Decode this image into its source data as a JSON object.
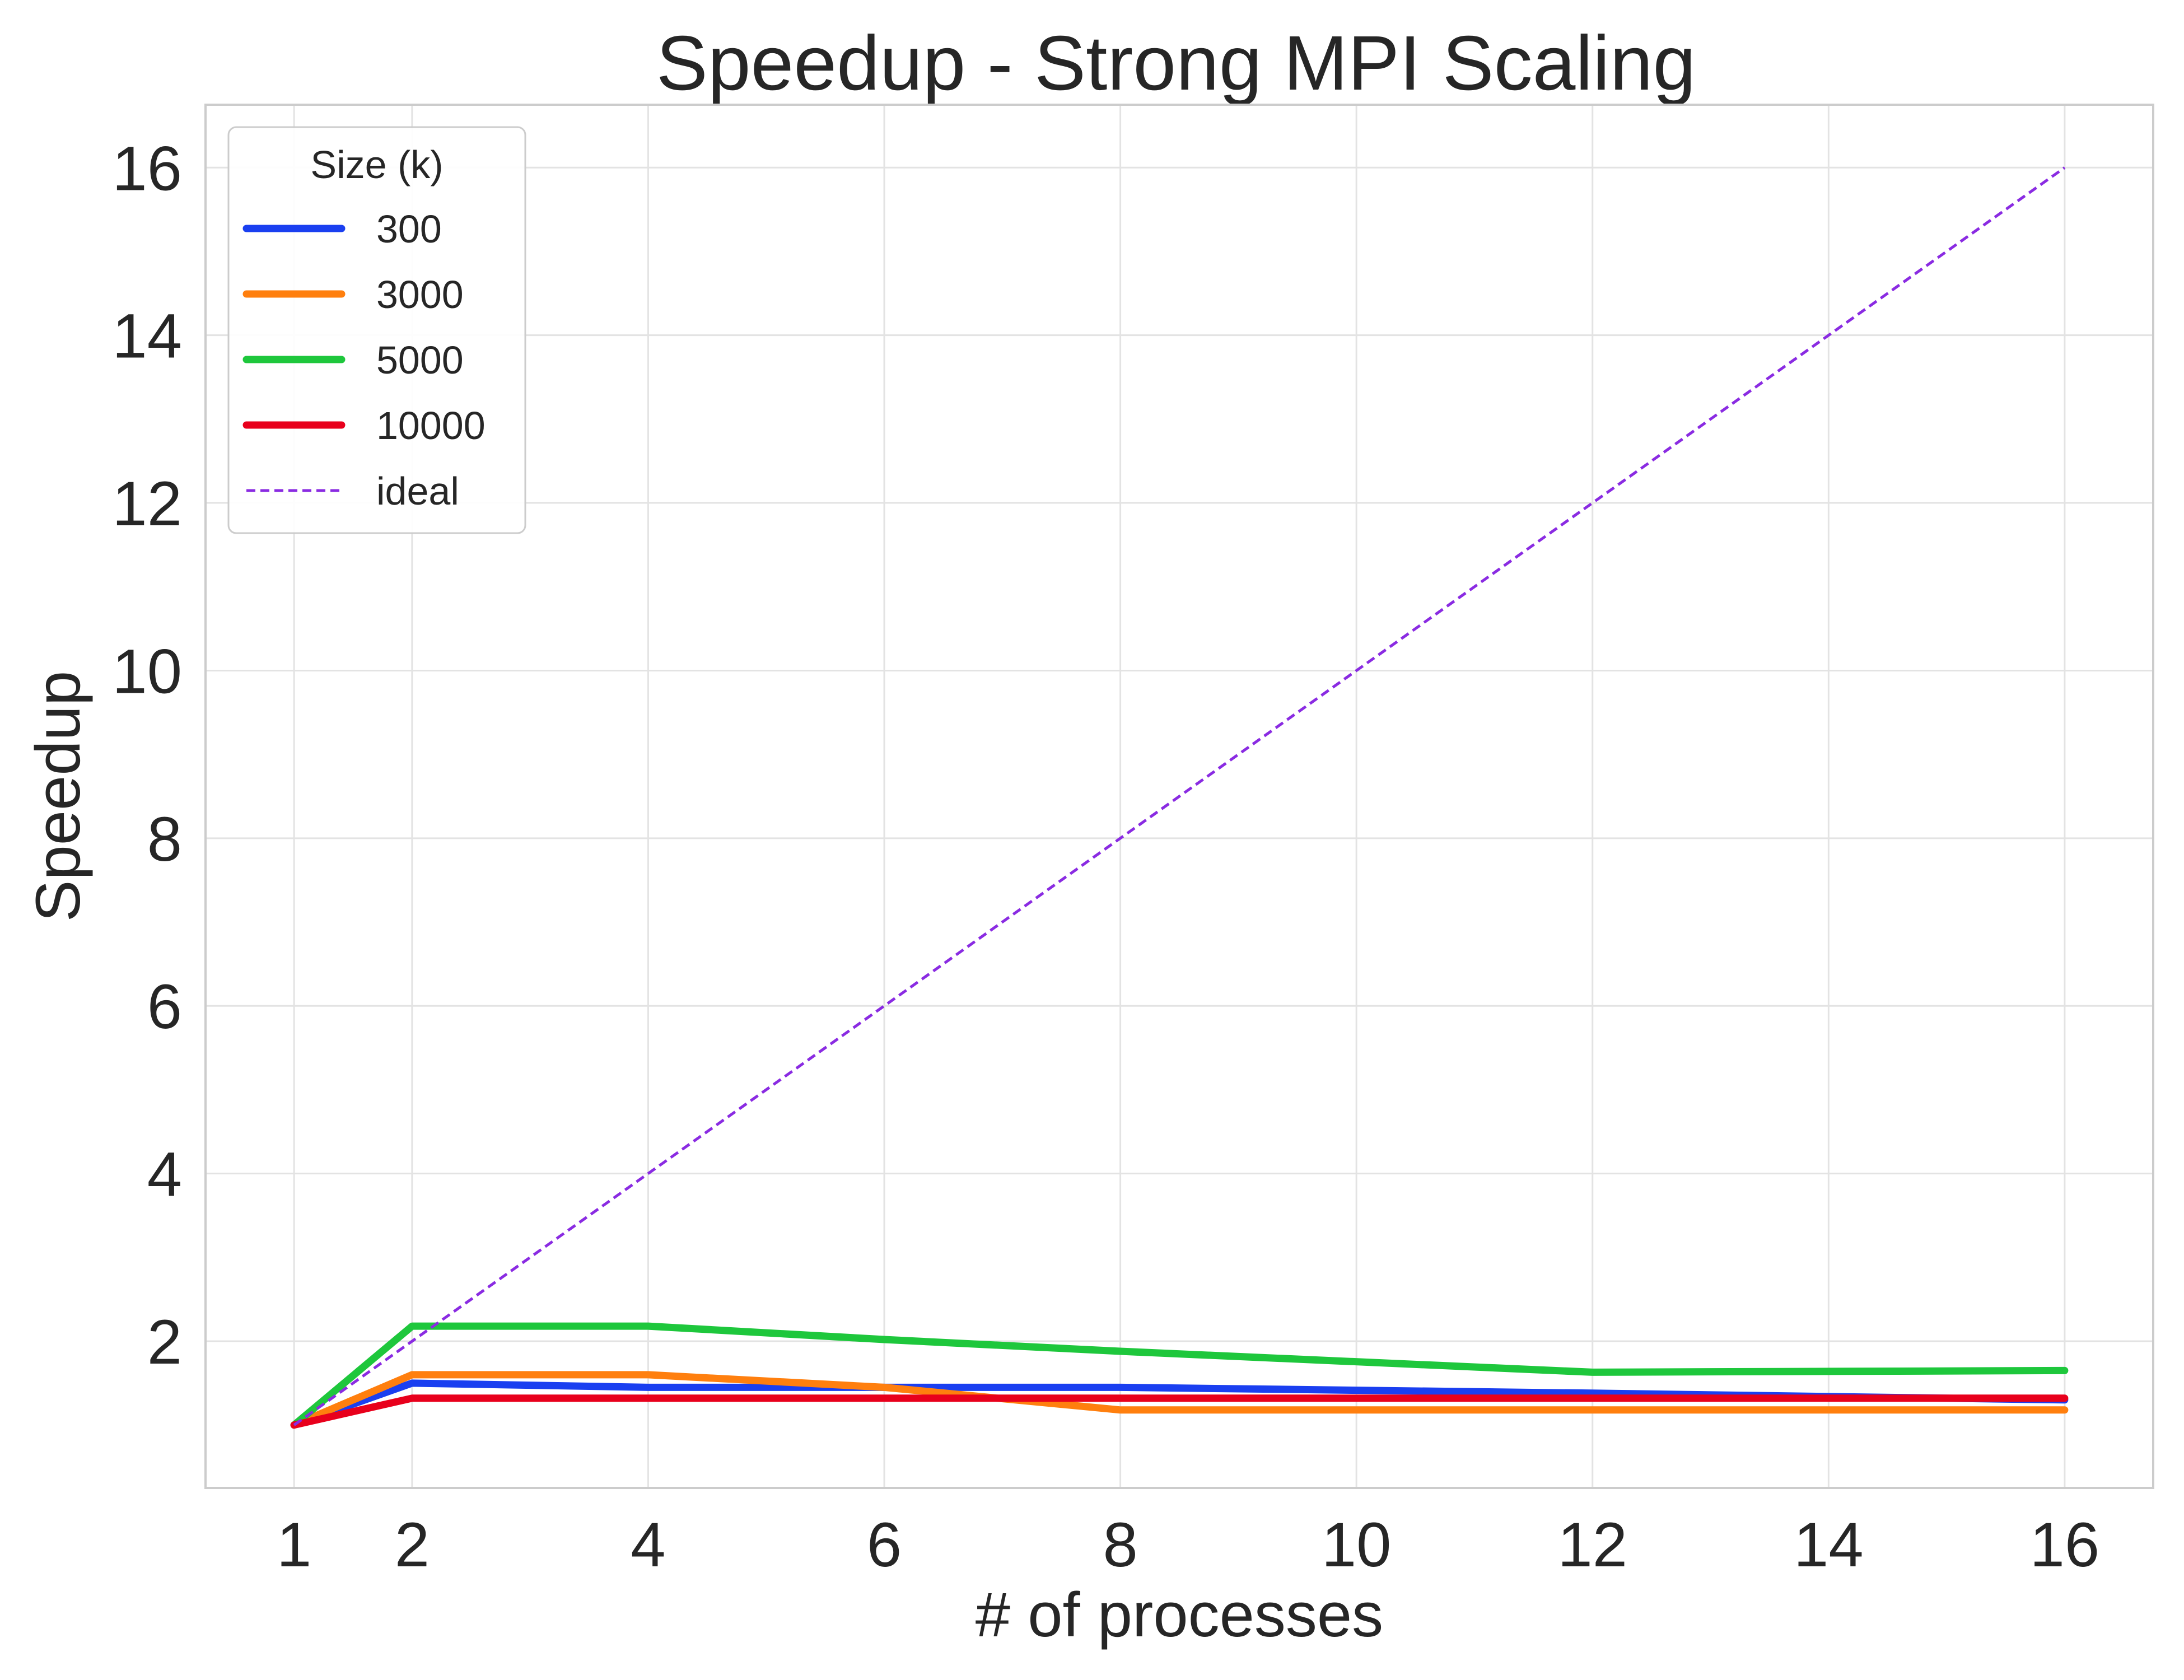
{
  "chart_data": {
    "type": "line",
    "title": "Speedup - Strong MPI Scaling",
    "xlabel": "# of processes",
    "ylabel": "Speedup",
    "x": [
      1,
      2,
      4,
      6,
      8,
      12,
      16
    ],
    "x_ticks": [
      1,
      2,
      4,
      6,
      8,
      10,
      12,
      14,
      16
    ],
    "y_ticks": [
      2,
      4,
      6,
      8,
      10,
      12,
      14,
      16
    ],
    "xlim": [
      0.25,
      16.75
    ],
    "ylim": [
      0.25,
      16.75
    ],
    "grid": true,
    "legend": {
      "title": "Size (k)",
      "placement": "top-left"
    },
    "series": [
      {
        "name": "300",
        "color": "#1a3ff0",
        "style": "solid",
        "x": [
          1,
          2,
          4,
          6,
          8,
          12,
          16
        ],
        "values": [
          1.0,
          1.5,
          1.45,
          1.45,
          1.45,
          1.38,
          1.3
        ]
      },
      {
        "name": "3000",
        "color": "#ff7f0e",
        "style": "solid",
        "x": [
          1,
          2,
          4,
          6,
          8,
          12,
          16
        ],
        "values": [
          1.0,
          1.6,
          1.6,
          1.45,
          1.18,
          1.18,
          1.18
        ]
      },
      {
        "name": "5000",
        "color": "#1ec73c",
        "style": "solid",
        "x": [
          1,
          2,
          4,
          6,
          8,
          12,
          16
        ],
        "values": [
          1.0,
          2.18,
          2.18,
          2.02,
          1.88,
          1.63,
          1.65
        ]
      },
      {
        "name": "10000",
        "color": "#e8001c",
        "style": "solid",
        "x": [
          1,
          2,
          4,
          6,
          8,
          12,
          16
        ],
        "values": [
          1.0,
          1.32,
          1.32,
          1.32,
          1.32,
          1.32,
          1.32
        ]
      },
      {
        "name": "ideal",
        "color": "#8a2be2",
        "style": "dashed",
        "x": [
          1,
          16
        ],
        "values": [
          1,
          16
        ]
      }
    ]
  }
}
